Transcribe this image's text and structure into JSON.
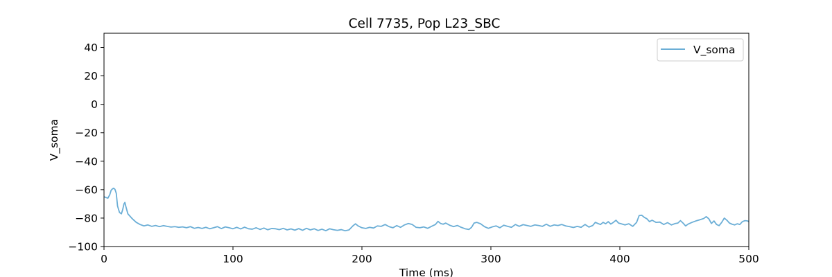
{
  "chart_data": {
    "type": "line",
    "title": "Cell 7735, Pop L23_SBC",
    "xlabel": "Time (ms)",
    "ylabel": "V_soma",
    "xlim": [
      0,
      500
    ],
    "ylim": [
      -100,
      50
    ],
    "xticks": [
      0,
      100,
      200,
      300,
      400,
      500
    ],
    "yticks": [
      -100,
      -80,
      -60,
      -40,
      -20,
      0,
      20,
      40
    ],
    "grid": false,
    "legend_position": "top-right",
    "series": [
      {
        "name": "V_soma",
        "color": "#6baed6",
        "points": [
          [
            0,
            -65
          ],
          [
            1.5,
            -65.5
          ],
          [
            3,
            -66
          ],
          [
            4.5,
            -63.5
          ],
          [
            5.5,
            -60.5
          ],
          [
            6.5,
            -59.5
          ],
          [
            7.5,
            -59
          ],
          [
            8.5,
            -59.8
          ],
          [
            9.5,
            -62.5
          ],
          [
            10.5,
            -71.5
          ],
          [
            12,
            -76
          ],
          [
            13.5,
            -77
          ],
          [
            14.5,
            -74
          ],
          [
            15.5,
            -70
          ],
          [
            16.2,
            -69
          ],
          [
            17,
            -72
          ],
          [
            18.5,
            -77
          ],
          [
            20,
            -78.5
          ],
          [
            22,
            -80.5
          ],
          [
            25,
            -83
          ],
          [
            28,
            -84.5
          ],
          [
            31,
            -85.5
          ],
          [
            34,
            -84.8
          ],
          [
            37,
            -85.8
          ],
          [
            40,
            -85.2
          ],
          [
            43,
            -86
          ],
          [
            46,
            -85.3
          ],
          [
            49,
            -85.8
          ],
          [
            52,
            -86.3
          ],
          [
            55,
            -86
          ],
          [
            58,
            -86.5
          ],
          [
            61,
            -86.2
          ],
          [
            64,
            -86.8
          ],
          [
            67,
            -86
          ],
          [
            70,
            -87.2
          ],
          [
            73,
            -86.6
          ],
          [
            76,
            -87.3
          ],
          [
            79,
            -86.5
          ],
          [
            82,
            -87.5
          ],
          [
            85,
            -86.8
          ],
          [
            88,
            -86
          ],
          [
            91,
            -87.4
          ],
          [
            94,
            -86.2
          ],
          [
            97,
            -86.8
          ],
          [
            100,
            -87.5
          ],
          [
            103,
            -86.5
          ],
          [
            106,
            -87.6
          ],
          [
            109,
            -86.4
          ],
          [
            112,
            -87.5
          ],
          [
            115,
            -87.8
          ],
          [
            118,
            -86.8
          ],
          [
            121,
            -88
          ],
          [
            124,
            -87
          ],
          [
            127,
            -88.2
          ],
          [
            130,
            -87.3
          ],
          [
            133,
            -87.5
          ],
          [
            136,
            -88.1
          ],
          [
            139,
            -87.2
          ],
          [
            142,
            -88.3
          ],
          [
            145,
            -87.6
          ],
          [
            148,
            -88.5
          ],
          [
            151,
            -87.4
          ],
          [
            154,
            -88.6
          ],
          [
            157,
            -87.2
          ],
          [
            160,
            -88.3
          ],
          [
            163,
            -87.5
          ],
          [
            166,
            -88.7
          ],
          [
            169,
            -87.8
          ],
          [
            172,
            -88.9
          ],
          [
            175,
            -87.5
          ],
          [
            178,
            -88.2
          ],
          [
            181,
            -88.6
          ],
          [
            184,
            -88.1
          ],
          [
            187,
            -88.9
          ],
          [
            190,
            -88.3
          ],
          [
            193,
            -85.5
          ],
          [
            195,
            -84
          ],
          [
            197,
            -85.5
          ],
          [
            200,
            -86.8
          ],
          [
            203,
            -87.3
          ],
          [
            206,
            -86.5
          ],
          [
            209,
            -87
          ],
          [
            212,
            -85.5
          ],
          [
            215,
            -85.8
          ],
          [
            218,
            -84.5
          ],
          [
            221,
            -86
          ],
          [
            224,
            -86.8
          ],
          [
            227,
            -85.3
          ],
          [
            230,
            -86.5
          ],
          [
            233,
            -84.8
          ],
          [
            236,
            -83.8
          ],
          [
            239,
            -84.5
          ],
          [
            242,
            -86.5
          ],
          [
            245,
            -86.8
          ],
          [
            248,
            -86.2
          ],
          [
            251,
            -87.2
          ],
          [
            254,
            -85.8
          ],
          [
            257,
            -84.5
          ],
          [
            259,
            -82.3
          ],
          [
            261,
            -83.8
          ],
          [
            263,
            -84.3
          ],
          [
            265,
            -83.5
          ],
          [
            268,
            -85
          ],
          [
            271,
            -86
          ],
          [
            274,
            -85.2
          ],
          [
            277,
            -86.5
          ],
          [
            280,
            -87.5
          ],
          [
            283,
            -88
          ],
          [
            285,
            -86.5
          ],
          [
            287,
            -83.5
          ],
          [
            289,
            -83
          ],
          [
            292,
            -84
          ],
          [
            295,
            -86
          ],
          [
            298,
            -87.2
          ],
          [
            301,
            -86.2
          ],
          [
            304,
            -85.5
          ],
          [
            307,
            -86.8
          ],
          [
            310,
            -85
          ],
          [
            313,
            -85.8
          ],
          [
            316,
            -86.5
          ],
          [
            319,
            -84.5
          ],
          [
            322,
            -85.8
          ],
          [
            325,
            -84.6
          ],
          [
            328,
            -85.2
          ],
          [
            331,
            -85.8
          ],
          [
            334,
            -84.8
          ],
          [
            337,
            -85.2
          ],
          [
            340,
            -85.8
          ],
          [
            343,
            -84.3
          ],
          [
            346,
            -85.8
          ],
          [
            349,
            -84.8
          ],
          [
            352,
            -85.2
          ],
          [
            355,
            -84.5
          ],
          [
            358,
            -85.5
          ],
          [
            361,
            -86
          ],
          [
            364,
            -86.6
          ],
          [
            367,
            -85.8
          ],
          [
            370,
            -86.5
          ],
          [
            373,
            -84.5
          ],
          [
            376,
            -86.3
          ],
          [
            379,
            -85.2
          ],
          [
            381,
            -83
          ],
          [
            383,
            -83.8
          ],
          [
            385,
            -84.5
          ],
          [
            387,
            -83
          ],
          [
            389,
            -84
          ],
          [
            391,
            -82.5
          ],
          [
            393,
            -84.2
          ],
          [
            395,
            -83
          ],
          [
            397,
            -81.5
          ],
          [
            399,
            -83.5
          ],
          [
            401,
            -84
          ],
          [
            404,
            -84.8
          ],
          [
            407,
            -84
          ],
          [
            410,
            -85.8
          ],
          [
            413,
            -83
          ],
          [
            415,
            -78.2
          ],
          [
            417,
            -78
          ],
          [
            419,
            -79.5
          ],
          [
            421,
            -80.5
          ],
          [
            423,
            -82.5
          ],
          [
            425,
            -81.5
          ],
          [
            428,
            -83
          ],
          [
            431,
            -82.8
          ],
          [
            434,
            -84.5
          ],
          [
            437,
            -83.2
          ],
          [
            440,
            -84.8
          ],
          [
            443,
            -83.8
          ],
          [
            445,
            -83.5
          ],
          [
            447,
            -81.8
          ],
          [
            449,
            -83.5
          ],
          [
            451,
            -85.5
          ],
          [
            453,
            -84.2
          ],
          [
            456,
            -83
          ],
          [
            459,
            -82
          ],
          [
            462,
            -81.2
          ],
          [
            465,
            -80.3
          ],
          [
            467,
            -79
          ],
          [
            469,
            -80.5
          ],
          [
            471,
            -83.8
          ],
          [
            473,
            -82
          ],
          [
            475,
            -84.5
          ],
          [
            477,
            -85.3
          ],
          [
            479,
            -83
          ],
          [
            481,
            -80
          ],
          [
            483,
            -81.5
          ],
          [
            485,
            -83.5
          ],
          [
            487,
            -84.3
          ],
          [
            489,
            -84.8
          ],
          [
            491,
            -84
          ],
          [
            493,
            -84.5
          ],
          [
            495,
            -82.5
          ],
          [
            497,
            -81.8
          ],
          [
            499,
            -82
          ],
          [
            500,
            -82.5
          ]
        ]
      }
    ]
  }
}
